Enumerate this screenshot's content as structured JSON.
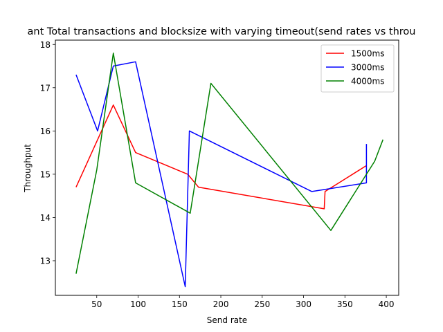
{
  "chart_data": {
    "type": "line",
    "title": "ant Total transactions and blocksize with varying timeout(send rates vs throu",
    "xlabel": "Send rate",
    "ylabel": "Throughput",
    "xlim": [
      0,
      415
    ],
    "ylim": [
      12.2,
      18.1
    ],
    "xticks": [
      50,
      100,
      150,
      200,
      250,
      300,
      350,
      400
    ],
    "yticks": [
      13,
      14,
      15,
      16,
      17,
      18
    ],
    "grid": false,
    "legend_position": "top-right",
    "series": [
      {
        "name": "1500ms",
        "color": "#ff0000",
        "x": [
          25,
          70,
          97,
          160,
          173,
          325,
          326,
          376
        ],
        "y": [
          14.7,
          16.6,
          15.5,
          15.0,
          14.7,
          14.2,
          14.6,
          15.2
        ]
      },
      {
        "name": "3000ms",
        "color": "#0000ff",
        "x": [
          25,
          51,
          70,
          97,
          157,
          162,
          310,
          376,
          376
        ],
        "y": [
          17.3,
          16.0,
          17.5,
          17.6,
          12.4,
          16.0,
          14.6,
          14.8,
          15.7
        ]
      },
      {
        "name": "4000ms",
        "color": "#008000",
        "x": [
          25,
          50,
          70,
          97,
          163,
          188,
          333,
          386,
          396
        ],
        "y": [
          12.7,
          15.1,
          17.8,
          14.8,
          14.1,
          17.1,
          13.7,
          15.3,
          15.8
        ]
      }
    ]
  }
}
